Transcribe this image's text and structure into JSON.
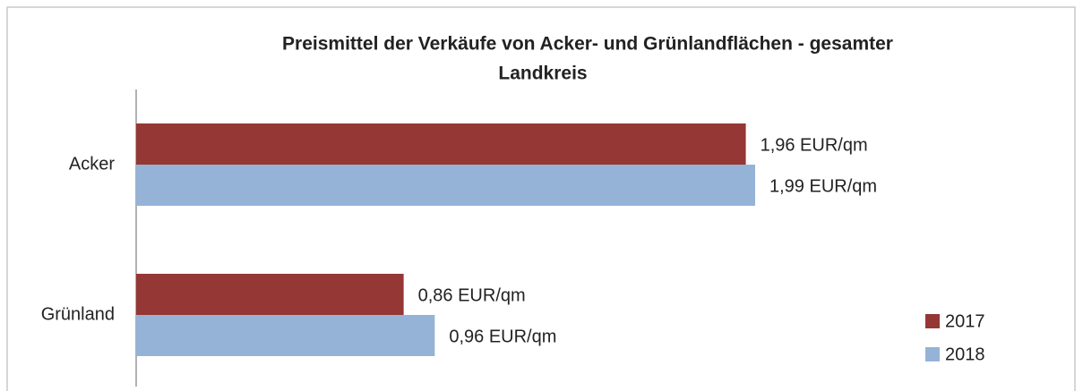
{
  "chart_data": {
    "type": "bar",
    "orientation": "horizontal",
    "title": [
      "Preismittel  der Verkäufe von Acker- und Grünlandflächen  - gesamter",
      "Landkreis"
    ],
    "categories": [
      "Acker",
      "Grünland"
    ],
    "series": [
      {
        "name": "2017",
        "color": "#953735",
        "values": [
          1.96,
          0.86
        ],
        "value_labels": [
          "1,96 EUR/qm",
          "0,86 EUR/qm"
        ]
      },
      {
        "name": "2018",
        "color": "#95b3d7",
        "values": [
          1.99,
          0.96
        ],
        "value_labels": [
          "1,99 EUR/qm",
          "0,96 EUR/qm"
        ]
      }
    ],
    "legend": "bottom-right"
  }
}
